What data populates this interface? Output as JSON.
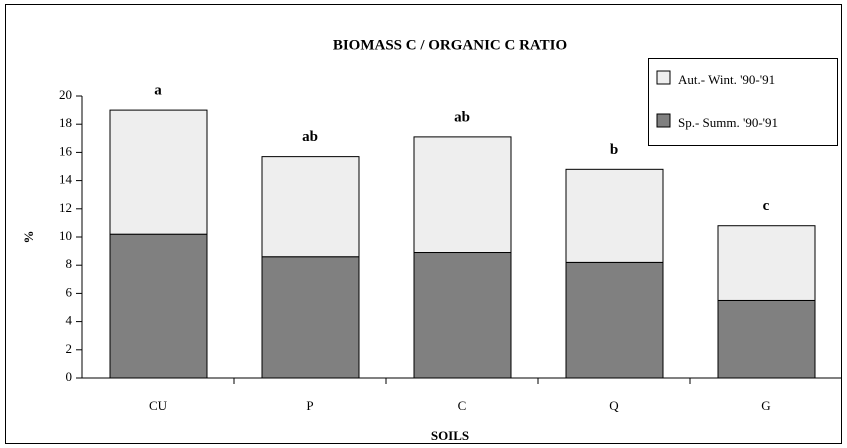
{
  "chart_data": {
    "type": "stacked_bar",
    "title": "BIOMASS C / ORGANIC C  RATIO",
    "xlabel": "SOILS",
    "ylabel": "%",
    "categories": [
      "CU",
      "P",
      "C",
      "Q",
      "G"
    ],
    "series": [
      {
        "name": "Aut.- Wint. '90-'91",
        "color": "#eeeeee",
        "values": [
          8.8,
          7.1,
          8.2,
          6.6,
          5.3
        ]
      },
      {
        "name": "Sp.- Summ. '90-'91",
        "color": "#808080",
        "values": [
          10.2,
          8.6,
          8.9,
          8.2,
          5.5
        ]
      }
    ],
    "annotations": [
      "a",
      "ab",
      "ab",
      "b",
      "c"
    ],
    "ylim": [
      0,
      20
    ],
    "yticks": [
      0,
      2,
      4,
      6,
      8,
      10,
      12,
      14,
      16,
      18,
      20
    ],
    "legend": "upper right"
  }
}
